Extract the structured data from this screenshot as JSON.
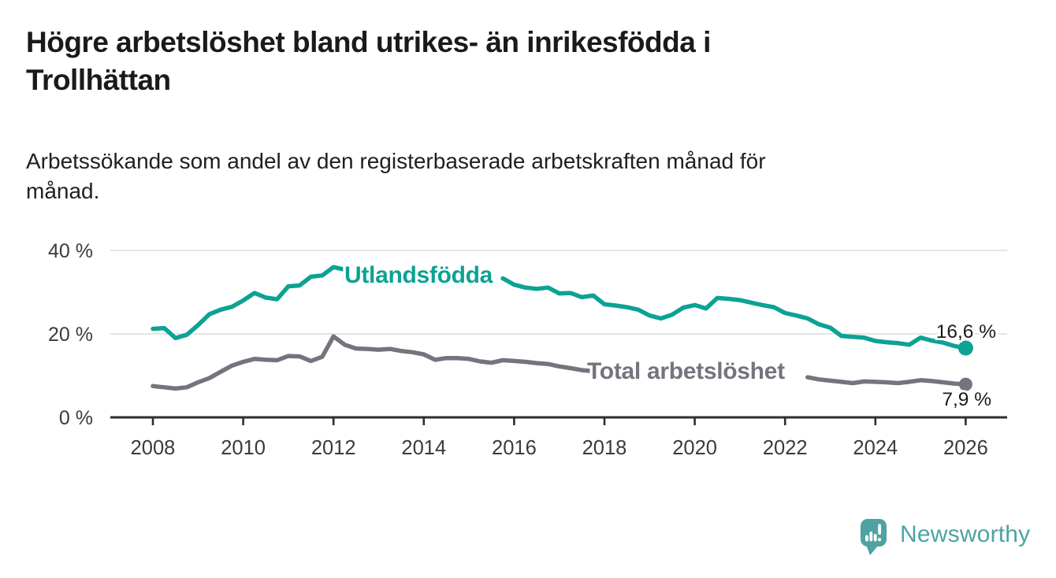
{
  "header": {
    "title_line1": "Högre arbetslöshet bland utrikes- än inrikesfödda i",
    "title_line2": "Trollhättan",
    "subtitle_line1": "Arbetssökande som andel av den registerbaserade arbetskraften månad för",
    "subtitle_line2": "månad."
  },
  "footer": {
    "brand": "Newsworthy",
    "logo_icon": "speech-bubble-bar-chart-icon"
  },
  "colors": {
    "accent_teal": "#0CA294",
    "line_gray": "#76737E",
    "logo_teal": "#4CA3A2",
    "title_text": "#1a1a1a",
    "axis_text": "#3b3b3b",
    "grid": "#DBDBDB",
    "axis": "#2E2E2E",
    "value_label_text": "#1a1a1a"
  },
  "chart_data": {
    "type": "line",
    "unit": "%",
    "title": "Högre arbetslöshet bland utrikes- än inrikesfödda i Trollhättan",
    "subtitle": "Arbetssökande som andel av den registerbaserade arbetskraften månad för månad.",
    "xlabel": "",
    "ylabel": "",
    "x_start": 2008.0,
    "x_step": 0.25,
    "x_end": 2026.0,
    "xlim": [
      2007.05,
      2026.95
    ],
    "ylim": [
      0,
      42
    ],
    "grid": "horizontal-only",
    "legend_position": "inline-labels",
    "x_ticks": [
      2008,
      2010,
      2012,
      2014,
      2016,
      2018,
      2020,
      2022,
      2024,
      2026
    ],
    "y_ticks": [
      {
        "value": 0,
        "label": "0 %"
      },
      {
        "value": 20,
        "label": "20 %"
      },
      {
        "value": 40,
        "label": "40 %"
      }
    ],
    "series": [
      {
        "name": "Utlandsfödda",
        "color": "#0CA294",
        "end_value": 16.6,
        "end_label": "16,6 %",
        "values": [
          21.2,
          21.4,
          19.0,
          19.8,
          22.1,
          24.7,
          25.8,
          26.5,
          28.0,
          29.8,
          28.7,
          28.3,
          31.4,
          31.6,
          33.7,
          34.0,
          36.0,
          35.4,
          35.1,
          34.9,
          34.9,
          34.6,
          34.3,
          34.4,
          34.1,
          33.9,
          33.9,
          33.7,
          33.5,
          33.6,
          33.4,
          33.3,
          31.8,
          31.1,
          30.8,
          31.1,
          29.7,
          29.8,
          28.8,
          29.2,
          27.1,
          26.8,
          26.4,
          25.8,
          24.4,
          23.7,
          24.6,
          26.3,
          26.9,
          26.1,
          28.6,
          28.4,
          28.1,
          27.5,
          26.9,
          26.4,
          25.0,
          24.4,
          23.7,
          22.3,
          21.5,
          19.5,
          19.3,
          19.1,
          18.3,
          18.0,
          17.8,
          17.4,
          19.1,
          18.4,
          17.9,
          17.1,
          16.6
        ]
      },
      {
        "name": "Total arbetslöshet",
        "color": "#76737E",
        "end_value": 7.9,
        "end_label": "7,9 %",
        "values": [
          7.5,
          7.2,
          6.9,
          7.2,
          8.4,
          9.4,
          10.9,
          12.4,
          13.3,
          14.0,
          13.8,
          13.7,
          14.7,
          14.6,
          13.5,
          14.5,
          19.4,
          17.4,
          16.5,
          16.4,
          16.2,
          16.4,
          15.9,
          15.6,
          15.1,
          13.8,
          14.2,
          14.2,
          14.0,
          13.4,
          13.1,
          13.7,
          13.5,
          13.3,
          13.0,
          12.8,
          12.2,
          11.8,
          11.3,
          11.1,
          10.9,
          10.8,
          10.7,
          10.5,
          10.4,
          10.3,
          10.4,
          10.6,
          10.8,
          11.2,
          11.0,
          10.8,
          10.6,
          10.4,
          10.2,
          10.0,
          9.9,
          9.8,
          9.6,
          9.1,
          8.8,
          8.5,
          8.2,
          8.6,
          8.5,
          8.4,
          8.2,
          8.5,
          8.9,
          8.7,
          8.4,
          8.1,
          7.9
        ]
      }
    ]
  }
}
